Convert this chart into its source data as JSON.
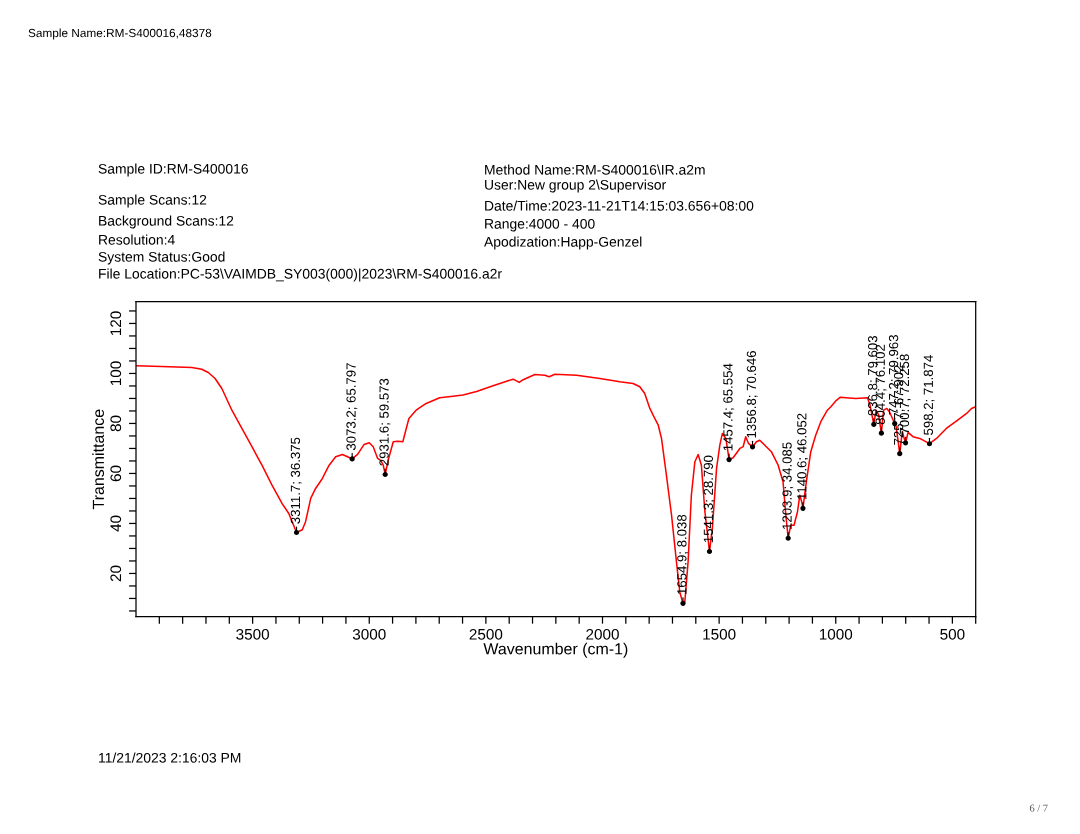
{
  "chart_data": {
    "type": "line",
    "title": "Sample Name:RM-S400016,48378",
    "xlabel": "Wavenumber (cm-1)",
    "ylabel": "Transmittance",
    "xlim": [
      4000,
      400
    ],
    "ylim": [
      2.7,
      128.7
    ],
    "xticks": [
      {
        "value": 3900,
        "label": null
      },
      {
        "value": 3800,
        "label": null
      },
      {
        "value": 3700,
        "label": null
      },
      {
        "value": 3600,
        "label": null
      },
      3500,
      {
        "value": 3400,
        "label": null
      },
      {
        "value": 3300,
        "label": null
      },
      {
        "value": 3200,
        "label": null
      },
      {
        "value": 3100,
        "label": null
      },
      3000,
      {
        "value": 2900,
        "label": null
      },
      {
        "value": 2800,
        "label": null
      },
      {
        "value": 2700,
        "label": null
      },
      {
        "value": 2600,
        "label": null
      },
      2500,
      {
        "value": 2400,
        "label": null
      },
      {
        "value": 2300,
        "label": null
      },
      {
        "value": 2200,
        "label": null
      },
      {
        "value": 2100,
        "label": null
      },
      2000,
      {
        "value": 1900,
        "label": null
      },
      {
        "value": 1800,
        "label": null
      },
      {
        "value": 1700,
        "label": null
      },
      {
        "value": 1600,
        "label": null
      },
      1500,
      {
        "value": 1400,
        "label": null
      },
      {
        "value": 1300,
        "label": null
      },
      {
        "value": 1200,
        "label": null
      },
      {
        "value": 1100,
        "label": null
      },
      1000,
      {
        "value": 900,
        "label": null
      },
      {
        "value": 800,
        "label": null
      },
      {
        "value": 700,
        "label": null
      },
      {
        "value": 600,
        "label": null
      },
      500,
      {
        "value": 400,
        "label": null
      }
    ],
    "yticks": [
      {
        "value": 5,
        "label": null
      },
      {
        "value": 10,
        "label": null
      },
      {
        "value": 15,
        "label": null
      },
      20,
      {
        "value": 25,
        "label": null
      },
      {
        "value": 30,
        "label": null
      },
      {
        "value": 35,
        "label": null
      },
      40,
      {
        "value": 45,
        "label": null
      },
      {
        "value": 50,
        "label": null
      },
      {
        "value": 55,
        "label": null
      },
      60,
      {
        "value": 65,
        "label": null
      },
      {
        "value": 70,
        "label": null
      },
      {
        "value": 75,
        "label": null
      },
      80,
      {
        "value": 85,
        "label": null
      },
      {
        "value": 90,
        "label": null
      },
      {
        "value": 95,
        "label": null
      },
      100,
      {
        "value": 105,
        "label": null
      },
      {
        "value": 110,
        "label": null
      },
      {
        "value": 115,
        "label": null
      },
      120,
      {
        "value": 125,
        "label": null
      }
    ],
    "series": [
      {
        "color": "#ff0000",
        "line_style": "solid",
        "x": [
          3998,
          3891,
          3761,
          3718,
          3690,
          3661,
          3632,
          3589,
          3546,
          3503,
          3460,
          3417,
          3374,
          3345,
          3311.7,
          3287,
          3273,
          3251,
          3230,
          3201,
          3172,
          3144,
          3115,
          3093,
          3073.2,
          3050,
          3022,
          3000,
          2983,
          2964,
          2950,
          2940,
          2931.6,
          2917,
          2897,
          2878,
          2856,
          2845,
          2830,
          2799,
          2756,
          2698,
          2641,
          2598,
          2540,
          2469,
          2411,
          2383,
          2357,
          2340,
          2290,
          2247,
          2229,
          2204,
          2111,
          2011,
          1926,
          1869,
          1840,
          1819,
          1797,
          1783,
          1761,
          1747,
          1726,
          1704,
          1683,
          1669,
          1654.9,
          1647,
          1633,
          1619,
          1604,
          1590,
          1576,
          1561,
          1541.3,
          1529,
          1511,
          1497,
          1486,
          1471,
          1457.4,
          1440,
          1411,
          1397,
          1386,
          1374,
          1356.8,
          1340,
          1326,
          1304,
          1276,
          1247,
          1226,
          1214,
          1203.9,
          1193,
          1179,
          1164,
          1154,
          1146,
          1140.6,
          1126,
          1107,
          1086,
          1064,
          1036,
          1021,
          1000,
          980,
          956,
          914,
          864,
          853,
          836.8,
          827,
          816,
          804.4,
          795,
          781,
          770,
          747.2,
          741,
          725.7,
          715,
          700.7,
          690,
          669,
          640,
          598.2,
          568,
          526,
          483,
          439,
          418,
          400
        ],
        "values": [
          103.1,
          102.8,
          102.4,
          101.7,
          100.4,
          98.0,
          94.0,
          85.3,
          78.0,
          70.7,
          63.3,
          55.3,
          48.0,
          44.0,
          36.4,
          37.5,
          40.7,
          50.0,
          54.0,
          58.0,
          63.3,
          66.7,
          67.6,
          66.7,
          65.8,
          67.6,
          71.6,
          72.3,
          70.7,
          66.0,
          65.1,
          63.3,
          59.6,
          66.0,
          72.7,
          72.9,
          72.7,
          76.7,
          82.0,
          85.3,
          88.0,
          90.3,
          90.9,
          91.4,
          92.8,
          95.1,
          96.9,
          97.7,
          96.4,
          97.5,
          99.6,
          99.3,
          98.7,
          99.7,
          99.3,
          98.0,
          96.7,
          96.0,
          94.7,
          92.0,
          86.0,
          83.3,
          79.3,
          74.0,
          59.3,
          43.3,
          24.7,
          12.7,
          8.0,
          8.7,
          24.7,
          51.3,
          64.7,
          67.6,
          63.3,
          44.7,
          28.8,
          38.0,
          62.0,
          71.3,
          76.0,
          74.0,
          65.6,
          66.3,
          70.0,
          70.7,
          74.7,
          72.0,
          70.6,
          72.7,
          73.3,
          71.3,
          68.7,
          63.3,
          56.7,
          43.3,
          34.1,
          39.3,
          39.3,
          44.7,
          51.3,
          48.7,
          46.1,
          56.7,
          68.7,
          75.3,
          80.7,
          85.3,
          86.7,
          89.0,
          90.5,
          90.3,
          90.0,
          90.3,
          87.3,
          79.6,
          85.3,
          83.3,
          76.1,
          85.3,
          86.0,
          84.7,
          80.0,
          78.7,
          67.9,
          76.7,
          72.3,
          76.4,
          74.7,
          74.0,
          71.9,
          74.0,
          78.0,
          80.9,
          84.0,
          86.0,
          86.7
        ]
      },
      {
        "type": "scatter",
        "color": "#000000",
        "marker": "circle",
        "x": [
          3311.7,
          3073.2,
          2931.6,
          1654.9,
          1541.3,
          1457.4,
          1356.8,
          1203.9,
          1140.6,
          836.8,
          804.4,
          747.2,
          725.7,
          700.7,
          598.2
        ],
        "values": [
          36.375,
          65.797,
          59.573,
          8.038,
          28.79,
          65.554,
          70.646,
          34.085,
          46.052,
          79.603,
          76.102,
          79.963,
          67.902,
          72.258,
          71.874
        ],
        "value_labels": [
          "3311.7; 36.375",
          "3073.2; 65.797",
          "2931.6; 59.573",
          "1654.9; 8.038",
          "1541.3; 28.790",
          "1457.4; 65.554",
          "1356.8; 70.646",
          "1203.9; 34.085",
          "1140.6; 46.052",
          "836.8; 79.603",
          "804.4; 76.102",
          "747.2; 79.963",
          "725.7; 67.902",
          "700.7; 72.258",
          "598.2; 71.874"
        ]
      }
    ],
    "annotations": [
      "Sample ID:RM-S400016",
      "Sample Scans:12",
      "Background Scans:12",
      "Resolution:4",
      "System Status:Good",
      "File Location:PC-53\\VAIMDB_SY003(000)|2023\\RM-S400016.a2r",
      "Method Name:RM-S400016\\IR.a2m",
      "User:New group 2\\Supervisor",
      "Date/Time:2023-11-21T14:15:03.656+08:00",
      "Range:4000 - 400",
      "Apodization:Happ-Genzel",
      "11/21/2023 2:16:03 PM",
      "6 / 7"
    ]
  }
}
